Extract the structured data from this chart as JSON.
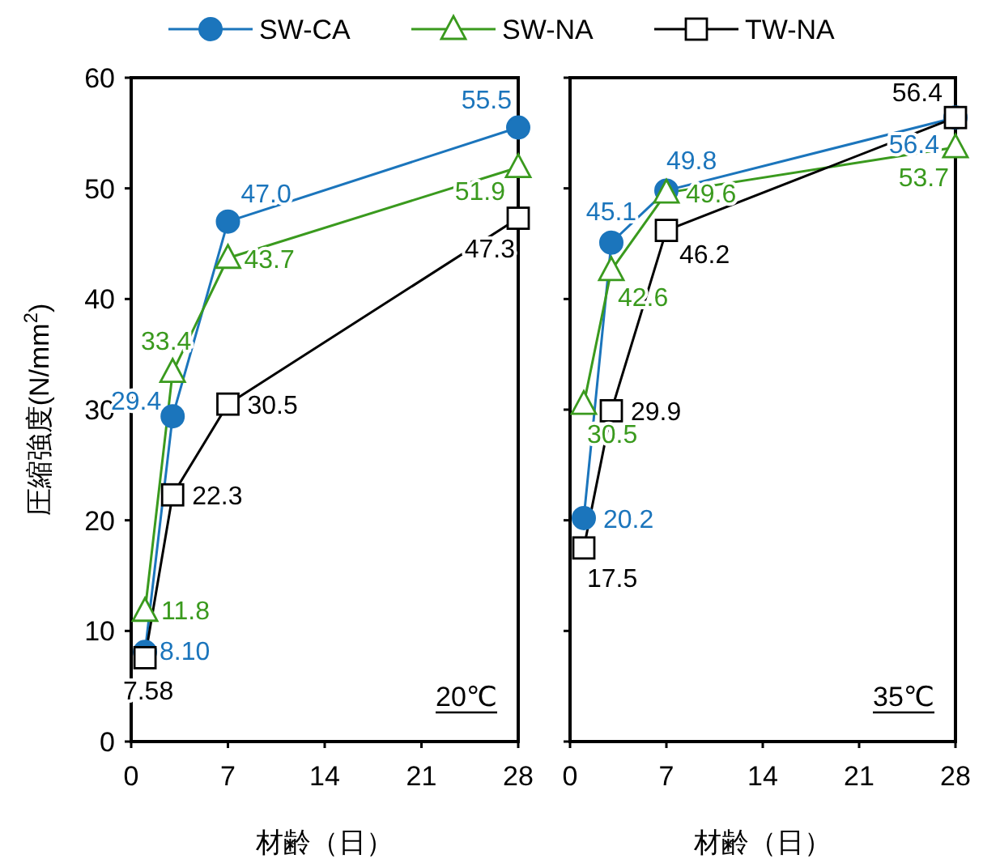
{
  "chart_data": [
    {
      "type": "line",
      "xlabel": "材齢（日）",
      "ylabel": "圧縮強度(N/mm$^{2}$)",
      "x": [
        1,
        3,
        7,
        28
      ],
      "xlim": [
        0,
        28
      ],
      "xticks": [
        0,
        7,
        14,
        21,
        28
      ],
      "ylim": [
        0,
        60
      ],
      "yticks": [
        0,
        10,
        20,
        30,
        40,
        50,
        60
      ],
      "legend": "top",
      "grid": false,
      "line_style": "solid",
      "annotations": [
        "20℃"
      ],
      "series": [
        {
          "name": "SW-CA",
          "color": "#1b75bc",
          "marker": "circle",
          "values": [
            8.1,
            29.4,
            47.0,
            55.5
          ],
          "value_labels": [
            "8.10",
            "29.4",
            "47.0",
            "55.5"
          ]
        },
        {
          "name": "SW-NA",
          "color": "#3a9a1e",
          "marker": "triangle",
          "values": [
            11.8,
            33.4,
            43.7,
            51.9
          ],
          "value_labels": [
            "11.8",
            "33.4",
            "43.7",
            "51.9"
          ]
        },
        {
          "name": "TW-NA",
          "color": "#000000",
          "marker": "square",
          "values": [
            7.58,
            22.3,
            30.5,
            47.3
          ],
          "value_labels": [
            "7.58",
            "22.3",
            "30.5",
            "47.3"
          ]
        }
      ]
    },
    {
      "type": "line",
      "xlabel": "材齢（日）",
      "x": [
        1,
        3,
        7,
        28
      ],
      "xlim": [
        0,
        28
      ],
      "xticks": [
        0,
        7,
        14,
        21,
        28
      ],
      "ylim": [
        0,
        60
      ],
      "yticks": [
        0,
        10,
        20,
        30,
        40,
        50,
        60
      ],
      "tick_labels": "x",
      "grid": false,
      "line_style": "solid",
      "annotations": [
        "35℃"
      ],
      "series": [
        {
          "color": "#1b75bc",
          "marker": "circle",
          "values": [
            20.2,
            45.1,
            49.8,
            56.4
          ],
          "value_labels": [
            "20.2",
            "45.1",
            "49.8",
            "56.4"
          ]
        },
        {
          "color": "#3a9a1e",
          "marker": "triangle",
          "values": [
            30.5,
            42.6,
            49.6,
            53.7
          ],
          "value_labels": [
            "30.5",
            "42.6",
            "49.6",
            "53.7"
          ]
        },
        {
          "color": "#000000",
          "marker": "square",
          "values": [
            17.5,
            29.9,
            46.2,
            56.4
          ],
          "value_labels": [
            "17.5",
            "29.9",
            "46.2",
            "56.4"
          ]
        }
      ]
    }
  ]
}
